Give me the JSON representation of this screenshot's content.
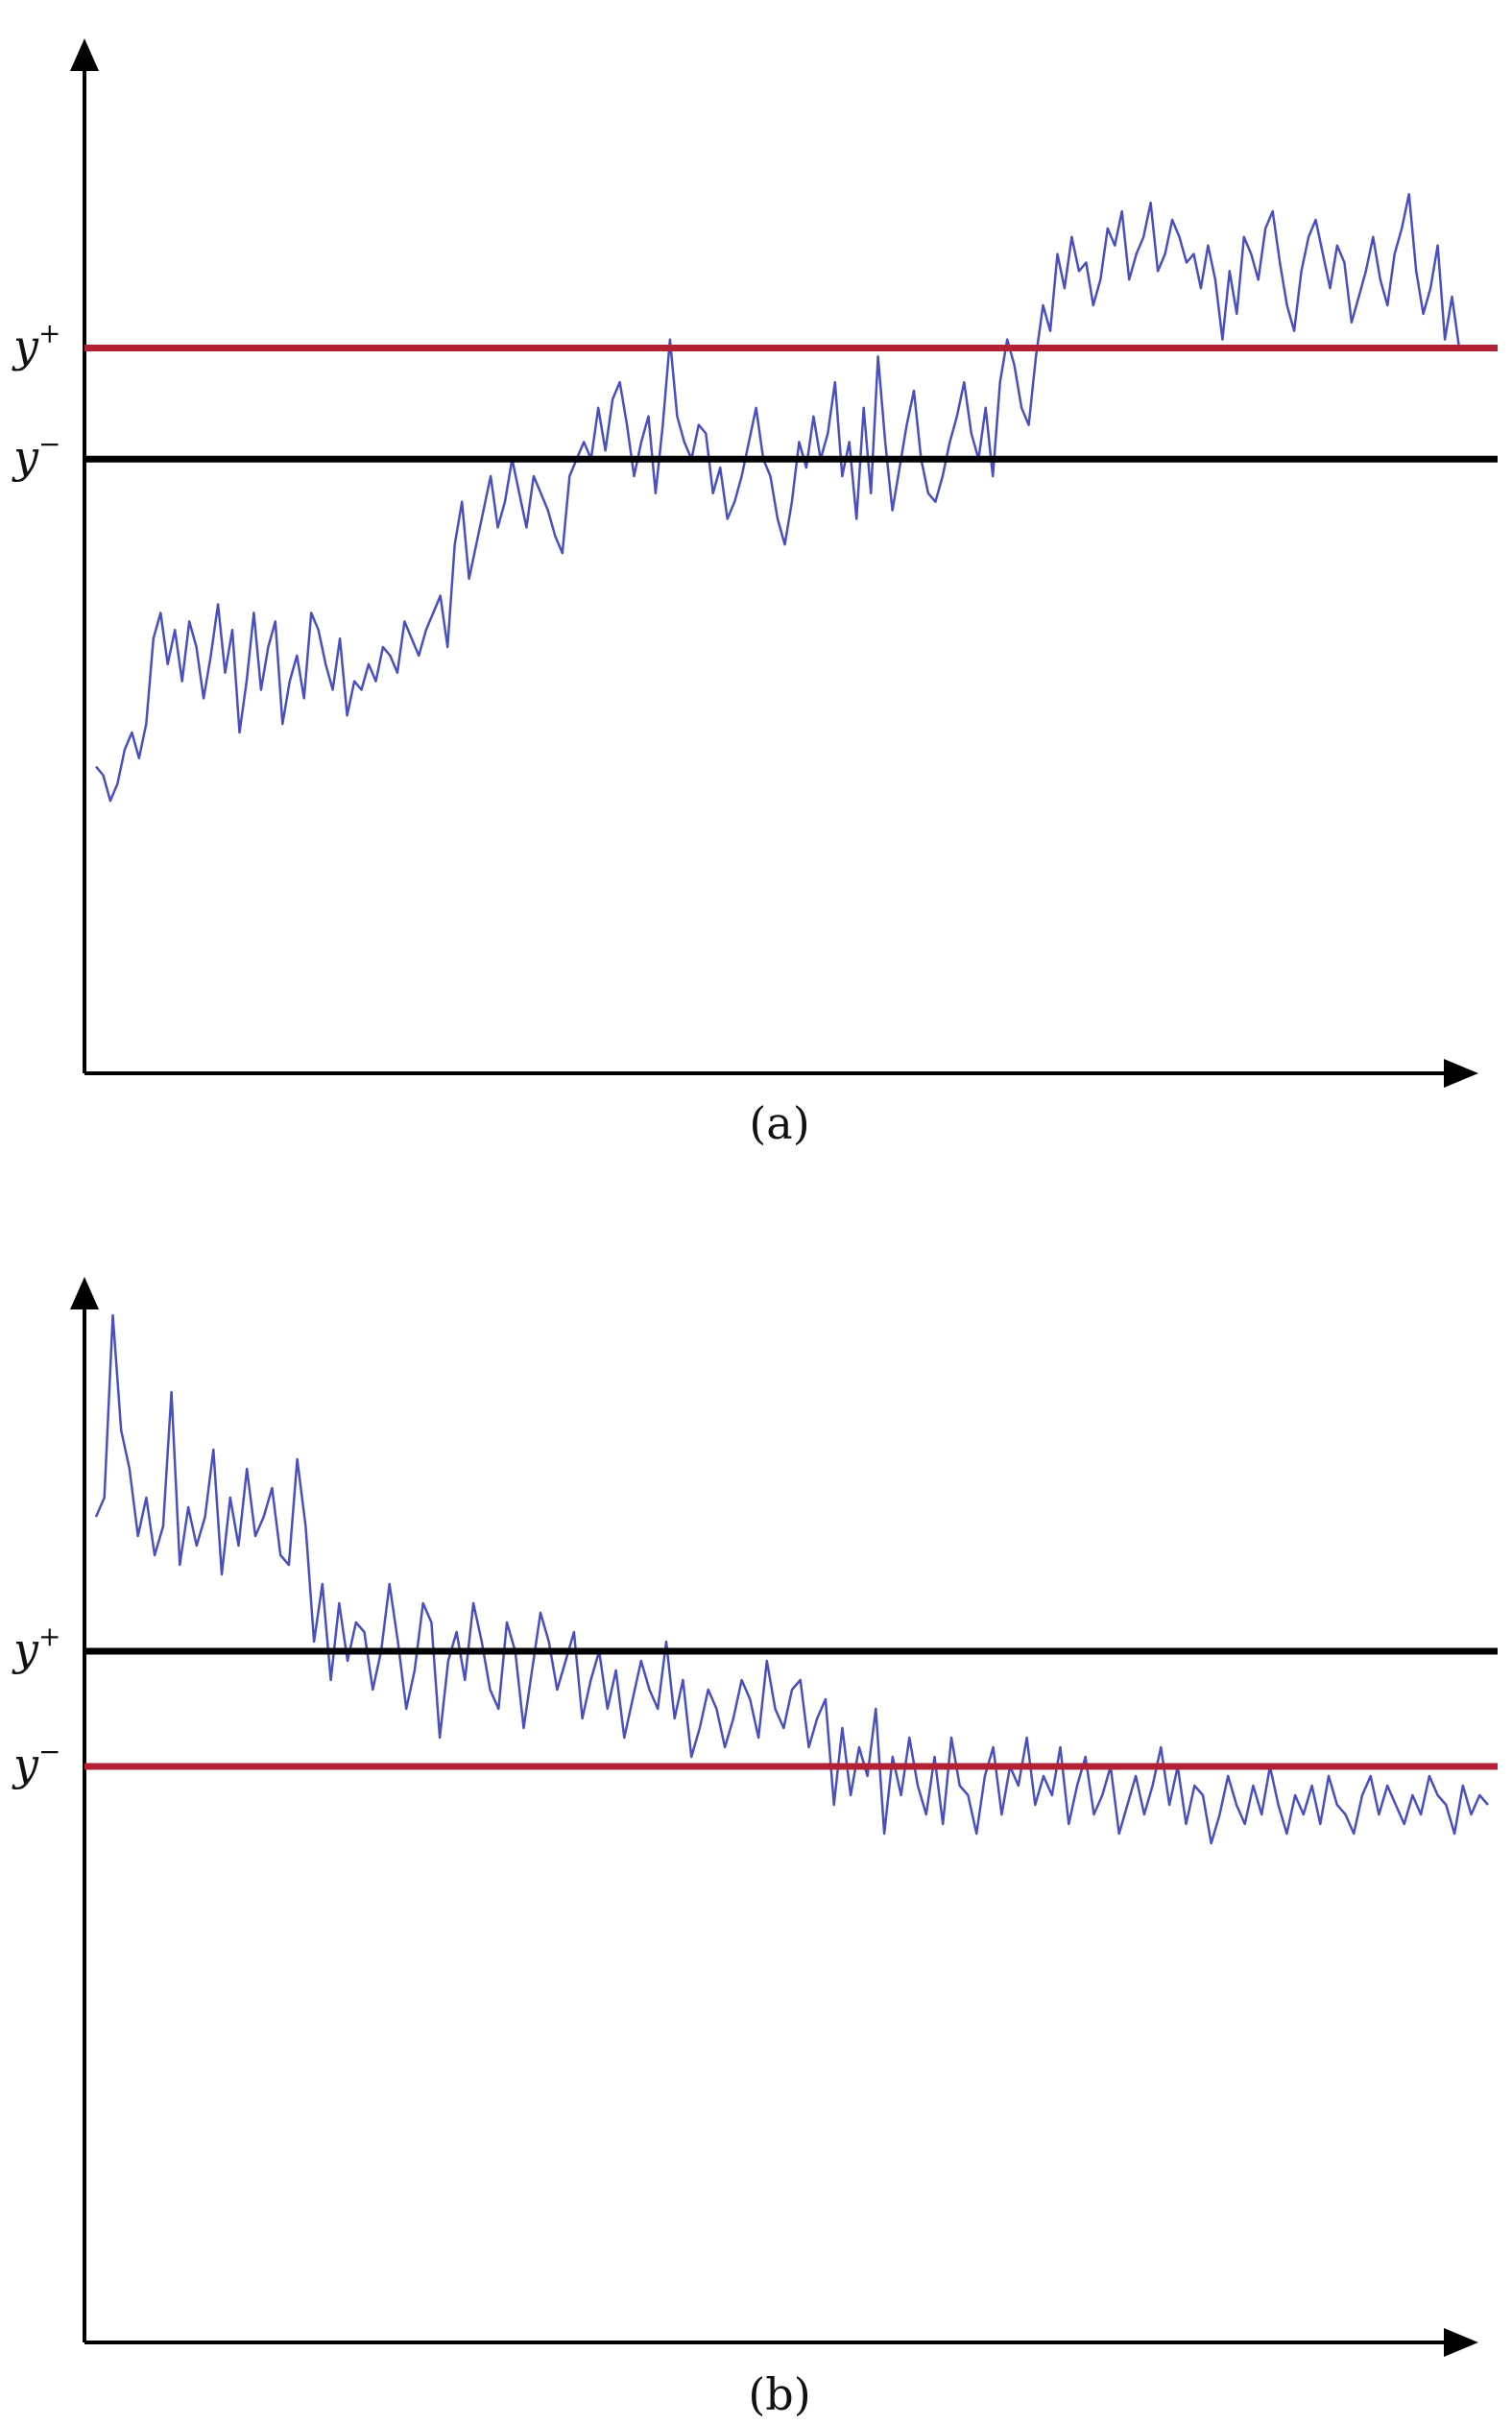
{
  "chart_data": [
    {
      "type": "line",
      "caption": "(a)",
      "xlabel": "",
      "ylabel": "",
      "ylim": [
        0,
        100
      ],
      "grid": false,
      "legend": "none",
      "thresholds": [
        {
          "label": "y",
          "sup": "+",
          "value": 75,
          "color": "#b22234"
        },
        {
          "label": "y",
          "sup": "−",
          "value": 62,
          "color": "#000000"
        }
      ],
      "series": [
        {
          "color": "#4a4fbf",
          "values": [
            26,
            25,
            22,
            24,
            28,
            30,
            27,
            31,
            41,
            44,
            38,
            42,
            36,
            43,
            40,
            34,
            39,
            45,
            37,
            42,
            30,
            36,
            44,
            35,
            40,
            43,
            31,
            36,
            39,
            34,
            44,
            42,
            38,
            35,
            41,
            32,
            36,
            35,
            38,
            36,
            40,
            39,
            37,
            43,
            41,
            39,
            42,
            44,
            46,
            40,
            52,
            57,
            48,
            52,
            56,
            60,
            54,
            57,
            62,
            58,
            54,
            60,
            58,
            56,
            53,
            51,
            60,
            62,
            64,
            62,
            68,
            63,
            69,
            71,
            66,
            60,
            64,
            67,
            58,
            66,
            76,
            67,
            64,
            62,
            66,
            65,
            58,
            61,
            55,
            57,
            60,
            64,
            68,
            62,
            60,
            55,
            52,
            57,
            64,
            61,
            67,
            62,
            65,
            71,
            60,
            64,
            55,
            68,
            58,
            74,
            64,
            56,
            61,
            66,
            70,
            62,
            58,
            57,
            60,
            64,
            67,
            71,
            65,
            62,
            68,
            60,
            71,
            76,
            73,
            68,
            66,
            74,
            80,
            77,
            86,
            82,
            88,
            84,
            85,
            80,
            83,
            89,
            87,
            91,
            83,
            86,
            88,
            92,
            84,
            86,
            90,
            88,
            85,
            86,
            82,
            87,
            83,
            76,
            84,
            79,
            88,
            86,
            83,
            89,
            91,
            85,
            80,
            77,
            84,
            88,
            90,
            86,
            82,
            87,
            85,
            78,
            81,
            84,
            88,
            83,
            80,
            86,
            89,
            93,
            84,
            79,
            82,
            87,
            76,
            81,
            75
          ]
        }
      ]
    },
    {
      "type": "line",
      "caption": "(b)",
      "xlabel": "",
      "ylabel": "",
      "ylim": [
        0,
        100
      ],
      "grid": false,
      "legend": "none",
      "thresholds": [
        {
          "label": "y",
          "sup": "+",
          "value": 61,
          "color": "#000000"
        },
        {
          "label": "y",
          "sup": "−",
          "value": 49,
          "color": "#b22234"
        }
      ],
      "series": [
        {
          "color": "#4a4fbf",
          "values": [
            75,
            77,
            96,
            84,
            80,
            73,
            77,
            71,
            74,
            88,
            70,
            76,
            72,
            75,
            82,
            69,
            77,
            72,
            80,
            73,
            75,
            78,
            71,
            70,
            81,
            74,
            62,
            68,
            58,
            66,
            60,
            64,
            63,
            57,
            61,
            68,
            62,
            55,
            59,
            66,
            64,
            52,
            60,
            63,
            58,
            66,
            62,
            57,
            55,
            64,
            61,
            53,
            59,
            65,
            62,
            57,
            60,
            63,
            54,
            58,
            61,
            55,
            59,
            52,
            56,
            60,
            57,
            55,
            62,
            54,
            58,
            50,
            53,
            57,
            55,
            51,
            54,
            58,
            56,
            52,
            60,
            55,
            53,
            57,
            58,
            51,
            54,
            56,
            45,
            53,
            46,
            51,
            48,
            55,
            42,
            50,
            46,
            52,
            47,
            44,
            50,
            43,
            52,
            47,
            46,
            42,
            48,
            51,
            44,
            49,
            47,
            52,
            45,
            48,
            46,
            51,
            43,
            47,
            50,
            44,
            46,
            49,
            42,
            45,
            48,
            44,
            47,
            51,
            45,
            49,
            43,
            47,
            46,
            41,
            44,
            48,
            45,
            43,
            47,
            44,
            49,
            45,
            42,
            46,
            44,
            47,
            43,
            48,
            45,
            44,
            42,
            46,
            48,
            44,
            47,
            45,
            43,
            46,
            44,
            48,
            46,
            45,
            42,
            47,
            44,
            46,
            45
          ]
        }
      ]
    }
  ]
}
